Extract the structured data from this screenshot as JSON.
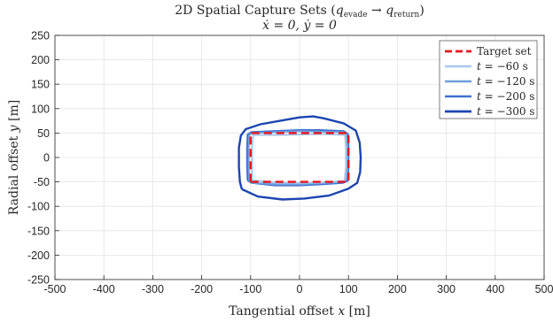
{
  "chart_data": {
    "type": "line",
    "title": "2D Spatial Capture Sets (q_evade → q_return)",
    "title_line1_prefix": "2D Spatial Capture Sets (",
    "title_q1": "q",
    "title_q1_sub": "evade",
    "title_arrow": " → ",
    "title_q2": "q",
    "title_q2_sub": "return",
    "title_line1_suffix": ")",
    "subtitle": "ẋ = 0,  ẏ = 0",
    "xlabel_prefix": "Tangential offset ",
    "xlabel_var": "x",
    "xlabel_suffix": " [m]",
    "ylabel_prefix": "Radial offset ",
    "ylabel_var": "y",
    "ylabel_suffix": " [m]",
    "xlim": [
      -500,
      500
    ],
    "ylim": [
      -250,
      250
    ],
    "xticks": [
      -500,
      -400,
      -300,
      -200,
      -100,
      0,
      100,
      200,
      300,
      400,
      500
    ],
    "yticks": [
      -250,
      -200,
      -150,
      -100,
      -50,
      0,
      50,
      100,
      150,
      200,
      250
    ],
    "grid": true,
    "legend_position": "top-right",
    "series": [
      {
        "name": "Target set",
        "label_var": "",
        "label_value": "Target set",
        "color": "#e8141c",
        "dashed": true,
        "width": 2.4,
        "points": [
          [
            -100,
            -50
          ],
          [
            100,
            -50
          ],
          [
            100,
            50
          ],
          [
            -100,
            50
          ],
          [
            -100,
            -50
          ]
        ]
      },
      {
        "name": "t = -60 s",
        "label_var": "t",
        "label_value": " = −60 s",
        "color": "#a9c8ec",
        "dashed": false,
        "width": 2.0,
        "points": [
          [
            -97,
            -47
          ],
          [
            -45,
            -51
          ],
          [
            0,
            -52
          ],
          [
            45,
            -51
          ],
          [
            92,
            -48
          ],
          [
            95,
            -20
          ],
          [
            95,
            20
          ],
          [
            93,
            46
          ],
          [
            45,
            48
          ],
          [
            0,
            47
          ],
          [
            -45,
            46
          ],
          [
            -95,
            46
          ],
          [
            -97,
            20
          ],
          [
            -97,
            -20
          ],
          [
            -97,
            -47
          ]
        ]
      },
      {
        "name": "t = -120 s",
        "label_var": "t",
        "label_value": " = −120 s",
        "color": "#6e9fde",
        "dashed": false,
        "width": 2.0,
        "points": [
          [
            -103,
            -48
          ],
          [
            -96,
            -52
          ],
          [
            -45,
            -55
          ],
          [
            0,
            -55
          ],
          [
            40,
            -53
          ],
          [
            90,
            -50
          ],
          [
            96,
            -46
          ],
          [
            98,
            -20
          ],
          [
            98,
            20
          ],
          [
            96,
            48
          ],
          [
            90,
            52
          ],
          [
            40,
            53
          ],
          [
            0,
            54
          ],
          [
            -45,
            52
          ],
          [
            -96,
            50
          ],
          [
            -103,
            46
          ],
          [
            -104,
            20
          ],
          [
            -104,
            -20
          ],
          [
            -103,
            -48
          ]
        ]
      },
      {
        "name": "t = -200 s",
        "label_var": "t",
        "label_value": " = −200 s",
        "color": "#3f6fcf",
        "dashed": false,
        "width": 2.2,
        "points": [
          [
            -106,
            -47
          ],
          [
            -98,
            -52
          ],
          [
            -50,
            -57
          ],
          [
            0,
            -57
          ],
          [
            40,
            -55
          ],
          [
            88,
            -52
          ],
          [
            98,
            -48
          ],
          [
            100,
            -20
          ],
          [
            100,
            20
          ],
          [
            99,
            48
          ],
          [
            90,
            54
          ],
          [
            40,
            56
          ],
          [
            0,
            56
          ],
          [
            -50,
            54
          ],
          [
            -98,
            52
          ],
          [
            -106,
            47
          ],
          [
            -107,
            20
          ],
          [
            -107,
            -20
          ],
          [
            -106,
            -47
          ]
        ]
      },
      {
        "name": "t = -300 s",
        "label_var": "t",
        "label_value": " = −300 s",
        "color": "#1c45b0",
        "dashed": false,
        "width": 2.4,
        "points": [
          [
            -118,
            -65
          ],
          [
            -85,
            -80
          ],
          [
            -35,
            -86
          ],
          [
            10,
            -84
          ],
          [
            60,
            -78
          ],
          [
            100,
            -64
          ],
          [
            118,
            -52
          ],
          [
            124,
            -30
          ],
          [
            125,
            0
          ],
          [
            123,
            30
          ],
          [
            115,
            55
          ],
          [
            90,
            70
          ],
          [
            50,
            80
          ],
          [
            28,
            84
          ],
          [
            0,
            82
          ],
          [
            -40,
            75
          ],
          [
            -80,
            68
          ],
          [
            -110,
            58
          ],
          [
            -120,
            45
          ],
          [
            -124,
            20
          ],
          [
            -124,
            -20
          ],
          [
            -122,
            -50
          ],
          [
            -118,
            -65
          ]
        ]
      }
    ]
  }
}
